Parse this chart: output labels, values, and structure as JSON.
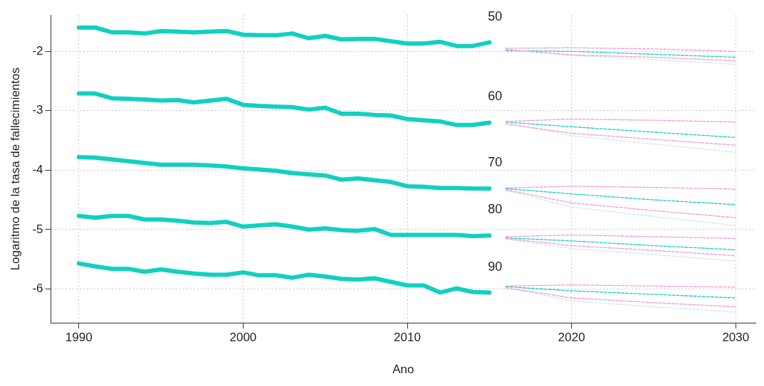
{
  "chart_data": {
    "type": "line",
    "xlabel": "Ano",
    "ylabel": "Logaritmo de la tasa de fallecimientos",
    "xlim": [
      1988.3,
      2031.2
    ],
    "ylim": [
      -6.57,
      -1.39
    ],
    "xticks": [
      1990,
      2000,
      2010,
      2020,
      2030
    ],
    "yticks": [
      -6,
      -5,
      -4,
      -3,
      -2
    ],
    "grid": true,
    "legend": false,
    "marker": "none",
    "line_style": "solid",
    "annotations": [
      "50",
      "60",
      "70",
      "80",
      "90"
    ],
    "x": [
      1990,
      1991,
      1992,
      1993,
      1994,
      1995,
      1996,
      1997,
      1998,
      1999,
      2000,
      2001,
      2002,
      2003,
      2004,
      2005,
      2006,
      2007,
      2008,
      2009,
      2010,
      2011,
      2012,
      2013,
      2014,
      2015
    ],
    "series": [
      {
        "color": "#12d0c0",
        "values": [
          -1.6,
          -1.6,
          -1.68,
          -1.68,
          -1.7,
          -1.66,
          -1.67,
          -1.68,
          -1.67,
          -1.66,
          -1.72,
          -1.73,
          -1.73,
          -1.7,
          -1.78,
          -1.74,
          -1.8,
          -1.79,
          -1.79,
          -1.83,
          -1.87,
          -1.87,
          -1.84,
          -1.91,
          -1.91,
          -1.85
        ]
      },
      {
        "color": "#12d0c0",
        "values": [
          -2.71,
          -2.71,
          -2.79,
          -2.8,
          -2.81,
          -2.83,
          -2.82,
          -2.86,
          -2.83,
          -2.8,
          -2.9,
          -2.92,
          -2.93,
          -2.94,
          -2.98,
          -2.95,
          -3.05,
          -3.05,
          -3.07,
          -3.08,
          -3.14,
          -3.16,
          -3.18,
          -3.24,
          -3.24,
          -3.2
        ]
      },
      {
        "color": "#12d0c0",
        "values": [
          -3.78,
          -3.79,
          -3.82,
          -3.85,
          -3.88,
          -3.91,
          -3.91,
          -3.91,
          -3.92,
          -3.94,
          -3.97,
          -3.99,
          -4.01,
          -4.05,
          -4.07,
          -4.09,
          -4.16,
          -4.14,
          -4.17,
          -4.2,
          -4.27,
          -4.28,
          -4.3,
          -4.3,
          -4.31,
          -4.31
        ]
      },
      {
        "color": "#12d0c0",
        "values": [
          -4.77,
          -4.8,
          -4.77,
          -4.77,
          -4.83,
          -4.83,
          -4.85,
          -4.88,
          -4.89,
          -4.87,
          -4.95,
          -4.93,
          -4.91,
          -4.95,
          -5.0,
          -4.98,
          -5.01,
          -5.02,
          -4.99,
          -5.09,
          -5.09,
          -5.09,
          -5.09,
          -5.09,
          -5.11,
          -5.1
        ]
      },
      {
        "color": "#12d0c0",
        "values": [
          -5.57,
          -5.62,
          -5.66,
          -5.66,
          -5.71,
          -5.67,
          -5.71,
          -5.74,
          -5.76,
          -5.76,
          -5.72,
          -5.77,
          -5.77,
          -5.81,
          -5.76,
          -5.79,
          -5.83,
          -5.84,
          -5.82,
          -5.88,
          -5.94,
          -5.94,
          -6.06,
          -5.99,
          -6.05,
          -6.06
        ]
      },
      {
        "x": [
          2016,
          2020,
          2025,
          2030
        ],
        "color": "#f49ad4",
        "line_style": "dashed",
        "values": [
          -1.95,
          -1.94,
          -1.96,
          -2.0
        ]
      },
      {
        "x": [
          2016,
          2020,
          2025,
          2030
        ],
        "color": "#f49ad4",
        "line_style": "dashed",
        "values": [
          -1.97,
          -2.06,
          -2.1,
          -2.16
        ]
      },
      {
        "x": [
          2016,
          2020,
          2025,
          2030
        ],
        "color": "#d3e8e6",
        "line_style": "dashed",
        "values": [
          -1.97,
          -2.07,
          -2.14,
          -2.22
        ]
      },
      {
        "x": [
          2016,
          2020,
          2025,
          2030
        ],
        "color": "#12d0c0",
        "line_style": "dashed",
        "values": [
          -1.99,
          -2.0,
          -2.05,
          -2.1
        ]
      },
      {
        "x": [
          2016,
          2020,
          2025,
          2030
        ],
        "color": "#f49ad4",
        "line_style": "dashed",
        "values": [
          -3.18,
          -3.14,
          -3.16,
          -3.19
        ]
      },
      {
        "x": [
          2016,
          2020,
          2025,
          2030
        ],
        "color": "#f49ad4",
        "line_style": "dashed",
        "values": [
          -3.22,
          -3.38,
          -3.48,
          -3.58
        ]
      },
      {
        "x": [
          2016,
          2020,
          2025,
          2030
        ],
        "color": "#12d0c0",
        "line_style": "dashed",
        "values": [
          -3.19,
          -3.27,
          -3.36,
          -3.45
        ]
      },
      {
        "x": [
          2016,
          2020,
          2025,
          2030
        ],
        "color": "#d3e8e6",
        "line_style": "dashed",
        "values": [
          -3.21,
          -3.42,
          -3.56,
          -3.7
        ]
      },
      {
        "x": [
          2016,
          2020,
          2025,
          2030
        ],
        "color": "#f49ad4",
        "line_style": "dashed",
        "values": [
          -4.3,
          -4.27,
          -4.29,
          -4.32
        ]
      },
      {
        "x": [
          2016,
          2020,
          2025,
          2030
        ],
        "color": "#f49ad4",
        "line_style": "dashed",
        "values": [
          -4.33,
          -4.55,
          -4.68,
          -4.8
        ]
      },
      {
        "x": [
          2016,
          2020,
          2025,
          2030
        ],
        "color": "#12d0c0",
        "line_style": "dashed",
        "values": [
          -4.31,
          -4.4,
          -4.5,
          -4.58
        ]
      },
      {
        "x": [
          2016,
          2020,
          2025,
          2030
        ],
        "color": "#d3e8e6",
        "line_style": "dashed",
        "values": [
          -4.34,
          -4.62,
          -4.78,
          -4.93
        ]
      },
      {
        "x": [
          2016,
          2020,
          2025,
          2030
        ],
        "color": "#f49ad4",
        "line_style": "dashed",
        "values": [
          -5.12,
          -5.09,
          -5.12,
          -5.15
        ]
      },
      {
        "x": [
          2016,
          2020,
          2025,
          2030
        ],
        "color": "#f49ad4",
        "line_style": "dashed",
        "values": [
          -5.15,
          -5.27,
          -5.35,
          -5.44
        ]
      },
      {
        "x": [
          2016,
          2020,
          2025,
          2030
        ],
        "color": "#12d0c0",
        "line_style": "dashed",
        "values": [
          -5.14,
          -5.19,
          -5.27,
          -5.34
        ]
      },
      {
        "x": [
          2016,
          2020,
          2025,
          2030
        ],
        "color": "#d3e8e6",
        "line_style": "dashed",
        "values": [
          -5.16,
          -5.32,
          -5.42,
          -5.53
        ]
      },
      {
        "x": [
          2016,
          2020,
          2025,
          2030
        ],
        "color": "#f49ad4",
        "line_style": "dashed",
        "values": [
          -5.95,
          -5.93,
          -5.95,
          -5.97
        ]
      },
      {
        "x": [
          2016,
          2020,
          2025,
          2030
        ],
        "color": "#f49ad4",
        "line_style": "dashed",
        "values": [
          -5.98,
          -6.15,
          -6.23,
          -6.3
        ]
      },
      {
        "x": [
          2016,
          2020,
          2025,
          2030
        ],
        "color": "#12d0c0",
        "line_style": "dashed",
        "values": [
          -5.96,
          -6.03,
          -6.09,
          -6.15
        ]
      },
      {
        "x": [
          2016,
          2020,
          2025,
          2030
        ],
        "color": "#d3e8e6",
        "line_style": "dashed",
        "values": [
          -5.97,
          -6.2,
          -6.3,
          -6.39
        ]
      }
    ]
  }
}
